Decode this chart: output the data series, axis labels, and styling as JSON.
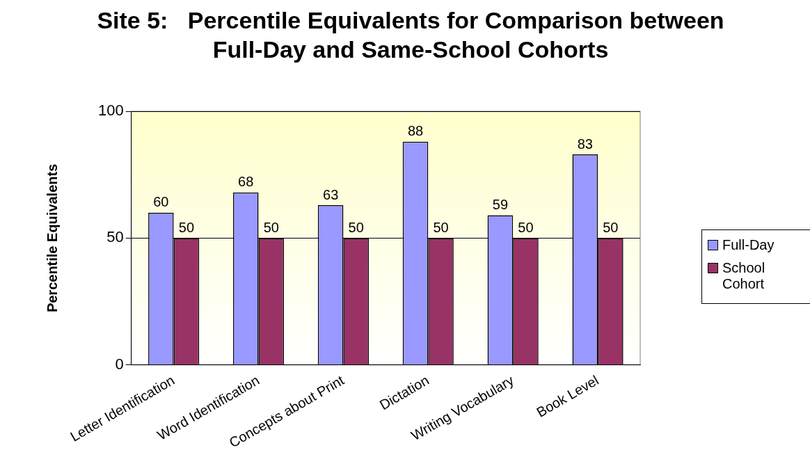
{
  "chart_data": {
    "type": "bar",
    "title": "Site 5:   Percentile Equivalents for Comparison between Full-Day and Same-School Cohorts",
    "ylabel": "Percentile Equivalents",
    "categories": [
      "Letter Identification",
      "Word Identification",
      "Concepts about Print",
      "Dictation",
      "Writing Vocabulary",
      "Book Level"
    ],
    "series": [
      {
        "name": "Full-Day",
        "color": "#9999ff",
        "values": [
          60,
          68,
          63,
          88,
          59,
          83
        ]
      },
      {
        "name": "School Cohort",
        "color": "#993366",
        "values": [
          50,
          50,
          50,
          50,
          50,
          50
        ]
      }
    ],
    "ylim": [
      0,
      100
    ],
    "yticks": [
      0,
      50,
      100
    ],
    "grid": "y",
    "legend": "right",
    "data_labels": true
  }
}
